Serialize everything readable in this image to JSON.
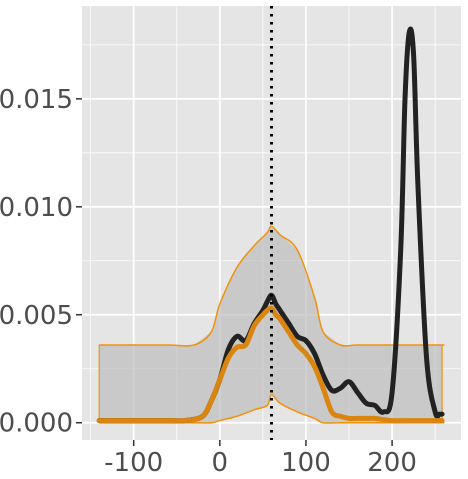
{
  "chart_data": {
    "type": "line",
    "title": "",
    "xlabel": "",
    "ylabel": "",
    "xlim": [
      -160,
      280
    ],
    "ylim": [
      -0.0008,
      0.0193
    ],
    "x_ticks": [
      -100,
      0,
      100,
      200
    ],
    "x_tick_labels": [
      "-100",
      "0",
      "100",
      "200"
    ],
    "y_ticks": [
      0.0,
      0.005,
      0.01,
      0.015
    ],
    "y_tick_labels": [
      "0.000",
      "0.005",
      "0.010",
      "0.015"
    ],
    "grid": true,
    "legend": "none",
    "reference_line": {
      "x": 60,
      "style": "dotted",
      "color": "#000000"
    },
    "colors": {
      "panel": "#e5e5e5",
      "grid": "#ffffff",
      "band_fill": "#bdbdbd",
      "band_edge": "#f0920a",
      "series_black": "#222222",
      "series_orange": "#d9850f"
    },
    "band": {
      "x": [
        -140,
        -100,
        -60,
        -30,
        -10,
        0,
        20,
        40,
        55,
        60,
        70,
        90,
        110,
        120,
        140,
        160,
        200,
        255,
        258
      ],
      "upper": [
        0.0036,
        0.0036,
        0.0036,
        0.0036,
        0.0042,
        0.0055,
        0.0072,
        0.0082,
        0.0088,
        0.0091,
        0.0087,
        0.008,
        0.0058,
        0.0042,
        0.0036,
        0.0036,
        0.0036,
        0.0036,
        0.0036
      ],
      "lower": [
        0.0,
        0.0,
        0.0,
        0.0,
        0.0,
        0.0001,
        0.0003,
        0.0006,
        0.0008,
        0.0013,
        0.0009,
        0.0005,
        0.0002,
        0.0,
        0.0,
        0.0,
        0.0,
        0.0,
        0.0
      ]
    },
    "series": [
      {
        "x": [
          -140,
          -60,
          -40,
          -20,
          -10,
          0,
          10,
          20,
          30,
          40,
          50,
          55,
          60,
          65,
          70,
          80,
          90,
          100,
          110,
          120,
          130,
          140,
          150,
          160,
          170,
          180,
          190,
          200,
          210,
          215,
          220,
          225,
          230,
          240,
          250,
          255,
          258
        ],
        "values": [
          0.0001,
          0.0001,
          0.0001,
          0.0003,
          0.001,
          0.002,
          0.0034,
          0.004,
          0.0038,
          0.0046,
          0.0052,
          0.0056,
          0.0059,
          0.0055,
          0.0052,
          0.0046,
          0.004,
          0.0038,
          0.0032,
          0.0022,
          0.0015,
          0.0016,
          0.0019,
          0.0014,
          0.0009,
          0.0008,
          0.0005,
          0.0014,
          0.008,
          0.015,
          0.0181,
          0.017,
          0.011,
          0.003,
          0.0005,
          0.0004,
          0.0004
        ]
      },
      {
        "x": [
          -140,
          -60,
          -40,
          -20,
          -10,
          0,
          10,
          20,
          30,
          40,
          50,
          55,
          60,
          65,
          70,
          80,
          90,
          100,
          110,
          120,
          130,
          140,
          150,
          160,
          170,
          180,
          200,
          220,
          240,
          255,
          258
        ],
        "values": [
          0.0001,
          0.0001,
          0.0001,
          0.0003,
          0.001,
          0.002,
          0.003,
          0.0035,
          0.0036,
          0.0045,
          0.005,
          0.0052,
          0.0053,
          0.005,
          0.0048,
          0.0042,
          0.0036,
          0.0032,
          0.0026,
          0.0016,
          0.0005,
          0.0003,
          0.0002,
          0.0002,
          0.0002,
          0.0002,
          0.0001,
          0.0001,
          0.0001,
          0.0001,
          0.0001
        ]
      }
    ]
  }
}
